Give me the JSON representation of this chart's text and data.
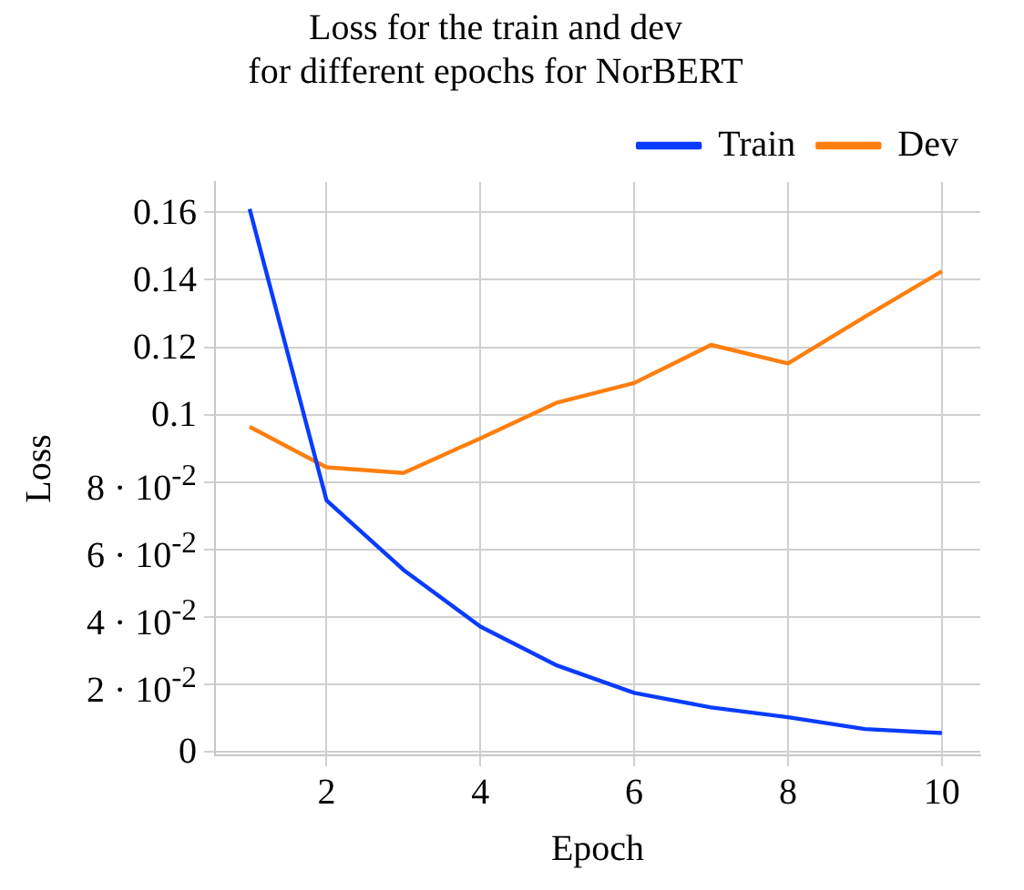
{
  "chart_data": {
    "type": "line",
    "title": "Loss for the train and dev for different epochs for NorBERT",
    "xlabel": "Epoch",
    "ylabel": "Loss",
    "x": [
      1,
      2,
      3,
      4,
      5,
      6,
      7,
      8,
      9,
      10
    ],
    "series": [
      {
        "name": "Train",
        "color": "#0a3cff",
        "values": [
          0.161,
          0.0746,
          0.054,
          0.0372,
          0.0256,
          0.0175,
          0.0132,
          0.0103,
          0.0068,
          0.0056
        ]
      },
      {
        "name": "Dev",
        "color": "#ff7f0e",
        "values": [
          0.0964,
          0.0844,
          0.0827,
          0.093,
          0.1036,
          0.1094,
          0.1207,
          0.1152,
          0.129,
          0.1425
        ]
      }
    ],
    "xlim": [
      0.55,
      10.5
    ],
    "xticks": [
      2,
      4,
      6,
      8,
      10
    ],
    "ylim": [
      -0.001,
      0.169
    ],
    "yticks": [
      0,
      {
        "value": 0.02,
        "label": "2 · 10$^{-2}$"
      },
      {
        "value": 0.04,
        "label": "4 · 10$^{-2}$"
      },
      {
        "value": 0.06,
        "label": "6 · 10$^{-2}$"
      },
      {
        "value": 0.08,
        "label": "8 · 10$^{-2}$"
      },
      0.1,
      0.12,
      0.14,
      0.16
    ],
    "grid": true,
    "legend": "top right",
    "marker": "none",
    "line_style": "solid"
  }
}
